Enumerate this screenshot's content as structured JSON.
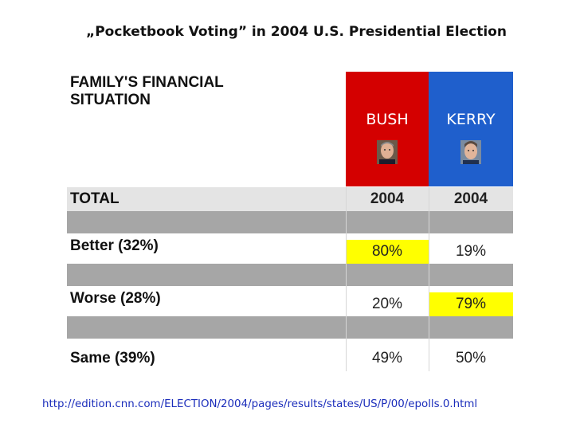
{
  "title": "„Pocketbook Voting” in 2004 U.S. Presidential Election",
  "table": {
    "header_line1": "FAMILY'S FINANCIAL",
    "header_line2": "SITUATION",
    "candidates": [
      {
        "name": "BUSH",
        "color": "#d40000",
        "icon": "bush-portrait-icon"
      },
      {
        "name": "KERRY",
        "color": "#1f5fcc",
        "icon": "kerry-portrait-icon"
      }
    ],
    "total": {
      "label": "TOTAL",
      "bush": "2004",
      "kerry": "2004"
    },
    "rows": [
      {
        "label": "Better (32%)",
        "bush": "80%",
        "kerry": "19%",
        "highlight": "bush"
      },
      {
        "label": "Worse (28%)",
        "bush": "20%",
        "kerry": "79%",
        "highlight": "kerry"
      },
      {
        "label": "Same (39%)",
        "bush": "49%",
        "kerry": "50%",
        "highlight": "none"
      }
    ],
    "highlight_color": "#ffff00"
  },
  "source_url": "http://edition.cnn.com/ELECTION/2004/pages/results/states/US/P/00/epolls.0.html"
}
